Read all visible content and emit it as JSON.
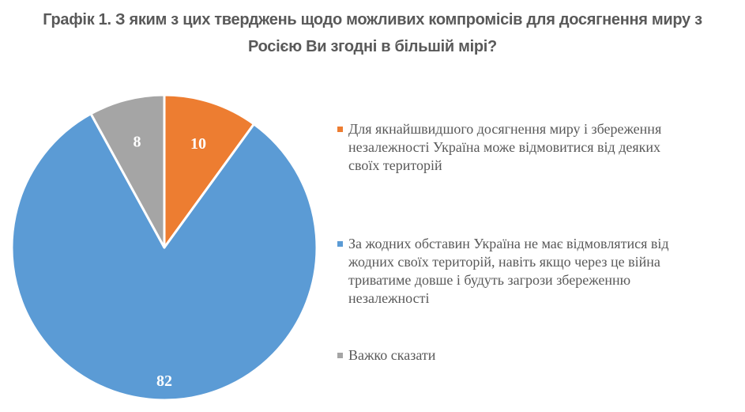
{
  "title": {
    "line1": "Графік 1. З яким з цих тверджень щодо можливих компромісів для досягнення миру з",
    "line2": "Росією Ви згодні в більшій мірі?"
  },
  "legend": [
    {
      "label": "Для якнайшвидшого досягнення миру і збереження незалежності Україна може відмовитися від деяких своїх територій",
      "color": "#ED7D31"
    },
    {
      "label": "За жодних обставин Україна не має відмовлятися від жодних своїх територій, навіть якщо через це війна триватиме довше і будуть загрози збереженню незалежності",
      "color": "#5B9BD5"
    },
    {
      "label": "Важко сказати",
      "color": "#A5A5A5"
    }
  ],
  "chart_data": {
    "type": "pie",
    "title": "Графік 1. З яким з цих тверджень щодо можливих компромісів для досягнення миру з Росією Ви згодні в більшій мірі?",
    "categories": [
      "Для якнайшвидшого досягнення миру і збереження незалежності Україна може відмовитися від деяких своїх територій",
      "За жодних обставин Україна не має відмовлятися від жодних своїх територій, навіть якщо через це війна триватиме довше і будуть загрози збереженню незалежності",
      "Важко сказати"
    ],
    "values": [
      10,
      82,
      8
    ],
    "data_labels": [
      "10",
      "82",
      "8"
    ],
    "colors": [
      "#ED7D31",
      "#5B9BD5",
      "#A5A5A5"
    ],
    "legend_position": "right",
    "start_angle": 0,
    "direction": "clockwise"
  }
}
